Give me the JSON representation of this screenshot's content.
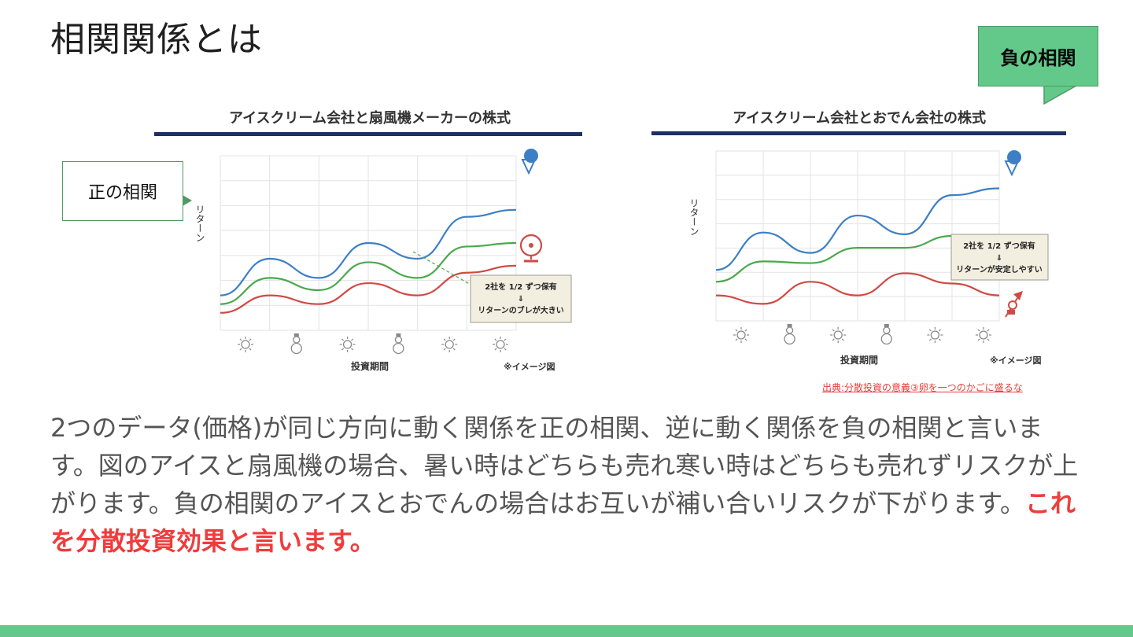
{
  "slide": {
    "title": "相関関係とは",
    "callout_positive": "正の相関",
    "callout_negative": "負の相関",
    "source_text": "出典:分散投資の意義③卵を一つのかごに盛るな",
    "body_text": "2つのデータ(価格)が同じ方向に動く関係を正の相関、逆に動く関係を負の相関と言います。図のアイスと扇風機の場合、暑い時はどちらも売れ寒い時はどちらも売れずリスクが上がります。負の相関のアイスとおでんの場合はお互いが補い合いリスクが下がります。",
    "body_highlight": "これを分散投資効果と言います。"
  },
  "colors": {
    "accent_green": "#62c98a",
    "highlight_red": "#f03c3c",
    "ice_blue": "#3d7fc4",
    "combined_green": "#4aa84c",
    "second_red": "#d04a44",
    "title_navy": "#1d3160"
  },
  "chart_data": [
    {
      "type": "line",
      "title": "アイスクリーム会社と扇風機メーカーの株式",
      "xlabel": "投資期間",
      "ylabel": "リターン",
      "note": "※イメージ図",
      "x_icons": [
        "sun",
        "snowman",
        "sun",
        "snowman",
        "sun",
        "sun"
      ],
      "x": [
        0,
        1,
        2,
        3,
        4,
        5,
        6
      ],
      "ylim": [
        0,
        10
      ],
      "series": [
        {
          "name": "アイスクリーム会社",
          "color": "#3d7fc4",
          "values": [
            2.0,
            4.1,
            3.0,
            5.0,
            4.1,
            6.5,
            6.9
          ]
        },
        {
          "name": "2社を1/2ずつ保有",
          "color": "#4aa84c",
          "values": [
            1.5,
            3.0,
            2.3,
            3.9,
            3.0,
            4.8,
            5.0
          ]
        },
        {
          "name": "扇風機メーカー",
          "color": "#d04a44",
          "values": [
            1.0,
            2.0,
            1.5,
            2.7,
            2.0,
            3.3,
            3.7
          ]
        }
      ],
      "box_lines": [
        "2社を 1/2 ずつ保有",
        "⇓",
        "リターンのブレが大きい"
      ]
    },
    {
      "type": "line",
      "title": "アイスクリーム会社とおでん会社の株式",
      "xlabel": "投資期間",
      "ylabel": "リターン",
      "note": "※イメージ図",
      "x_icons": [
        "sun",
        "snowman",
        "sun",
        "snowman",
        "sun",
        "sun"
      ],
      "x": [
        0,
        1,
        2,
        3,
        4,
        5,
        6
      ],
      "ylim": [
        0,
        10
      ],
      "series": [
        {
          "name": "アイスクリーム会社",
          "color": "#3d7fc4",
          "values": [
            3.0,
            5.2,
            4.0,
            6.2,
            5.1,
            7.4,
            7.8
          ]
        },
        {
          "name": "2社を1/2ずつ保有",
          "color": "#4aa84c",
          "values": [
            2.3,
            3.5,
            3.4,
            4.3,
            4.3,
            5.0,
            4.9
          ]
        },
        {
          "name": "おでん会社",
          "color": "#d04a44",
          "values": [
            1.5,
            1.0,
            2.3,
            1.5,
            2.8,
            2.2,
            1.5
          ]
        }
      ],
      "box_lines": [
        "2社を 1/2 ずつ保有",
        "⇓",
        "リターンが安定しやすい"
      ]
    }
  ]
}
